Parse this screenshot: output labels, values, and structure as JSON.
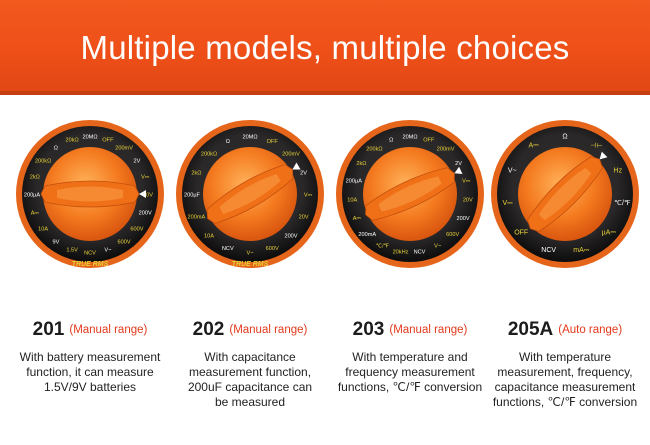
{
  "banner": {
    "title": "Multiple models, multiple choices"
  },
  "dials": [
    {
      "id": "201",
      "labels": [
        "20MΩ",
        "OFF",
        "200mV",
        "2V",
        "V⎓",
        "20V",
        "200V",
        "600V",
        "600V",
        "V~",
        "NCV",
        "1.5V",
        "9V",
        "10A",
        "A⎓",
        "200µA",
        "2kΩ",
        "200kΩ",
        "Ω",
        "20kΩ"
      ],
      "bottom_text": "TRUE RMS"
    },
    {
      "id": "202",
      "labels": [
        "20MΩ",
        "OFF",
        "200mV",
        "2V",
        "V⎓",
        "20V",
        "200V",
        "600V",
        "V~",
        "NCV",
        "10A",
        "200mA",
        "200µF",
        "2kΩ",
        "200kΩ",
        "Ω"
      ],
      "bottom_text": "TRUE RMS"
    },
    {
      "id": "203",
      "labels": [
        "20MΩ",
        "OFF",
        "200mV",
        "2V",
        "V⎓",
        "20V",
        "200V",
        "600V",
        "V~",
        "NCV",
        "20kHz",
        "℃/℉",
        "200mA",
        "A⎓",
        "10A",
        "200µA",
        "2kΩ",
        "200kΩ",
        "Ω"
      ],
      "bottom_text": ""
    },
    {
      "id": "205A",
      "labels": [
        "Ω",
        "⊣⊢",
        "Hz",
        "℃/℉",
        "µA⎓",
        "mA⎓",
        "NCV",
        "OFF",
        "V⎓",
        "V~",
        "A⎓"
      ],
      "bottom_text": ""
    }
  ],
  "cards": [
    {
      "model": "201",
      "range": "(Manual range)",
      "desc": [
        "With battery measurement",
        "function, it can measure",
        "1.5V/9V batteries"
      ]
    },
    {
      "model": "202",
      "range": "(Manual range)",
      "desc": [
        "With capacitance",
        "measurement function,",
        "200uF capacitance can",
        "be measured"
      ]
    },
    {
      "model": "203",
      "range": "(Manual range)",
      "desc": [
        "With temperature and",
        "frequency measurement",
        "functions, ℃/℉ conversion"
      ]
    },
    {
      "model": "205A",
      "range": "(Auto range)",
      "desc": [
        "With temperature",
        "measurement, frequency,",
        "capacitance measurement",
        "functions, ℃/℉ conversion"
      ]
    }
  ],
  "colors": {
    "banner": "#ee4f18",
    "accent_red": "#e4381b",
    "knob_orange": "#f47a1f",
    "dial_dark": "#1e1d1d",
    "label_yellow": "#e8d23a"
  }
}
